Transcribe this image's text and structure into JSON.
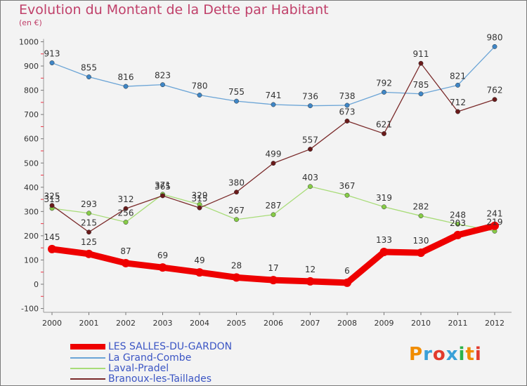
{
  "chart_data": {
    "type": "line",
    "title": "Evolution du Montant de la Dette par Habitant",
    "unit_label": "(en €)",
    "x": [
      "2000",
      "2001",
      "2002",
      "2003",
      "2004",
      "2005",
      "2006",
      "2007",
      "2008",
      "2009",
      "2010",
      "2011",
      "2012"
    ],
    "ylim": [
      -100,
      1000
    ],
    "yticks": [
      "-100",
      "0",
      "100",
      "200",
      "300",
      "400",
      "500",
      "600",
      "700",
      "800",
      "900",
      "1000"
    ],
    "grid": false,
    "series": [
      {
        "name": "La Grand-Combe",
        "color": "#6aa4d6",
        "marker": "#3f86c6",
        "values": [
          913,
          855,
          816,
          823,
          780,
          755,
          741,
          736,
          738,
          792,
          785,
          821,
          980
        ],
        "labels": [
          "913",
          "855",
          "816",
          "823",
          "780",
          "755",
          "741",
          "736",
          "738",
          "792",
          "785",
          "821",
          "980"
        ]
      },
      {
        "name": "Laval-Pradel",
        "color": "#a8dc78",
        "marker": "#86cc46",
        "values": [
          313,
          293,
          256,
          371,
          329,
          267,
          287,
          403,
          367,
          319,
          282,
          248,
          219
        ],
        "labels": [
          "313",
          "293",
          "256",
          "371",
          "329",
          "267",
          "287",
          "403",
          "367",
          "319",
          "282",
          "248",
          "219"
        ]
      },
      {
        "name": "Branoux-les-Taillades",
        "color": "#7a2a2a",
        "marker": "#6a1a1a",
        "values": [
          325,
          215,
          312,
          365,
          315,
          380,
          499,
          557,
          673,
          621,
          911,
          712,
          762
        ],
        "labels": [
          "325",
          "215",
          "312",
          "365",
          "315",
          "380",
          "499",
          "557",
          "673",
          "621",
          "911",
          "712",
          "762"
        ]
      },
      {
        "name": "LES SALLES-DU-GARDON",
        "color": "#ee0000",
        "marker": "#ee0000",
        "values": [
          145,
          125,
          87,
          69,
          49,
          28,
          17,
          12,
          6,
          133,
          130,
          203,
          241
        ],
        "labels": [
          "145",
          "125",
          "87",
          "69",
          "49",
          "28",
          "17",
          "12",
          "6",
          "133",
          "130",
          "203",
          "241"
        ]
      }
    ]
  },
  "legend": {
    "items": [
      {
        "label": "LES SALLES-DU-GARDON",
        "color": "#ee0000"
      },
      {
        "label": "La Grand-Combe",
        "color": "#6aa4d6"
      },
      {
        "label": "Laval-Pradel",
        "color": "#a8dc78"
      },
      {
        "label": "Branoux-les-Taillades",
        "color": "#7a2a2a"
      }
    ]
  },
  "logo": {
    "letters": [
      "P",
      "r",
      "o",
      "x",
      "i",
      "t",
      "i"
    ],
    "colors": [
      "#f08c00",
      "#3aa0d8",
      "#e23b2e",
      "#3aa0d8",
      "#2db34a",
      "#f08c00",
      "#e23b2e"
    ]
  }
}
